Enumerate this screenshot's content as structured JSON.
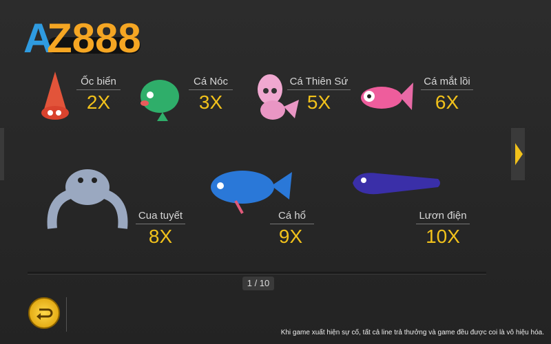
{
  "logo": {
    "text": "AZ888"
  },
  "row1": [
    {
      "name": "Ốc biển",
      "multiplier": "2X"
    },
    {
      "name": "Cá Nóc",
      "multiplier": "3X"
    },
    {
      "name": "Cá Thiên Sứ",
      "multiplier": "5X"
    },
    {
      "name": "Cá mắt lồi",
      "multiplier": "6X"
    }
  ],
  "row2": [
    {
      "name": "Cua tuyết",
      "multiplier": "8X"
    },
    {
      "name": "Cá hổ",
      "multiplier": "9X"
    },
    {
      "name": "Lươn điện",
      "multiplier": "10X"
    }
  ],
  "pagination": "1 / 10",
  "footer_note": "Khi game xuất hiện sự cố, tất cả line trả thưởng và game đều được coi là vô hiệu hóa.",
  "colors": {
    "accent": "#f2c21b",
    "background": "#262626"
  }
}
